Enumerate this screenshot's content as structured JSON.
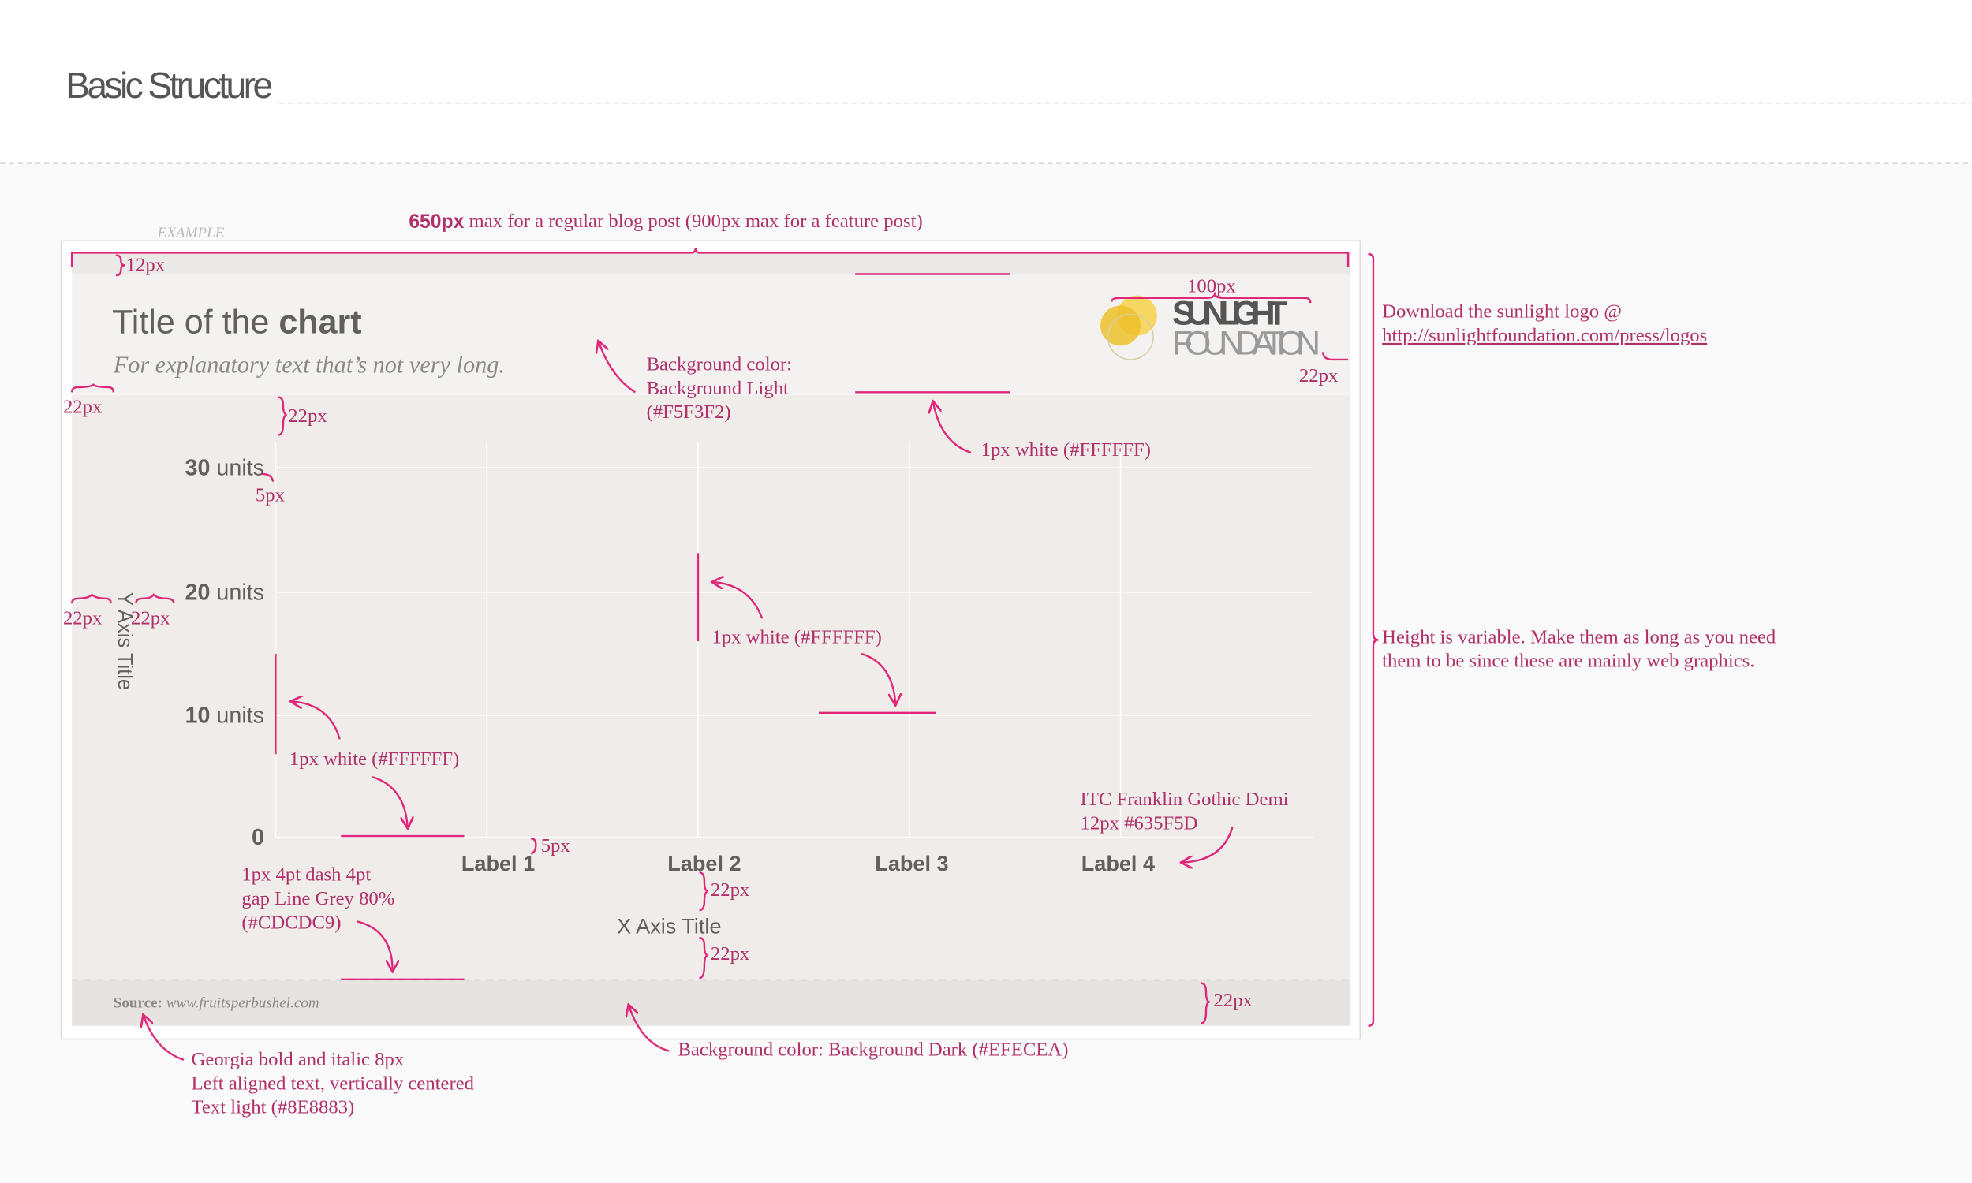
{
  "header": {
    "title": "Basic Structure"
  },
  "example": {
    "label": "EXAMPLE",
    "title_light": "Title of the ",
    "title_bold": "chart",
    "subtitle": "For explanatory text that’s not very long.",
    "logo": {
      "line1": "SUNLIGHT",
      "line2": "FOUNDATION"
    },
    "y_ticks": [
      {
        "number": "30",
        "unit": " units"
      },
      {
        "number": "20",
        "unit": " units"
      },
      {
        "number": "10",
        "unit": " units"
      },
      {
        "number": "0"
      }
    ],
    "y_axis_title": "Y Axis Title",
    "x_labels": [
      "Label 1",
      "Label 2",
      "Label 3",
      "Label 4"
    ],
    "x_axis_title": "X Axis Title",
    "source_label": "Source: ",
    "source_url": "www.fruitsperbushel.com"
  },
  "width_note": {
    "bold": "650px",
    "rest": " max for a regular blog post (900px max for a feature post)"
  },
  "annotations": [
    {
      "lines": [
        "12px"
      ]
    },
    {
      "lines": [
        "22px"
      ]
    },
    {
      "lines": [
        "22px"
      ]
    },
    {
      "lines": [
        "5px"
      ]
    },
    {
      "lines": [
        "22px"
      ]
    },
    {
      "lines": [
        "22px"
      ]
    },
    {
      "lines": [
        "Background color:",
        "Background Light",
        "(#F5F3F2)"
      ]
    },
    {
      "lines": [
        "100px"
      ]
    },
    {
      "lines": [
        "22px"
      ]
    },
    {
      "lines": [
        "1px white (#FFFFFF)"
      ]
    },
    {
      "lines": [
        "Download the sunlight logo @",
        "http://sunlightfoundation.com/press/logos"
      ]
    },
    {
      "lines": [
        "Height is variable. Make them as long as you need",
        "them to be since these are mainly web graphics."
      ]
    },
    {
      "lines": [
        "1px white (#FFFFFF)"
      ]
    },
    {
      "lines": [
        "1px white (#FFFFFF)"
      ]
    },
    {
      "lines": [
        "ITC Franklin Gothic Demi",
        "12px  #635F5D"
      ]
    },
    {
      "lines": [
        "5px"
      ]
    },
    {
      "lines": [
        "1px 4pt dash 4pt",
        "gap Line Grey 80%",
        "(#CDCDC9)"
      ]
    },
    {
      "lines": [
        "22px"
      ]
    },
    {
      "lines": [
        "22px"
      ]
    },
    {
      "lines": [
        "22px"
      ]
    },
    {
      "lines": [
        "Georgia bold and italic 8px",
        "Left aligned text, vertically centered",
        "Text light (#8E8883)"
      ]
    },
    {
      "lines": [
        "Background color: Background Dark (#EFECEA)"
      ]
    }
  ]
}
